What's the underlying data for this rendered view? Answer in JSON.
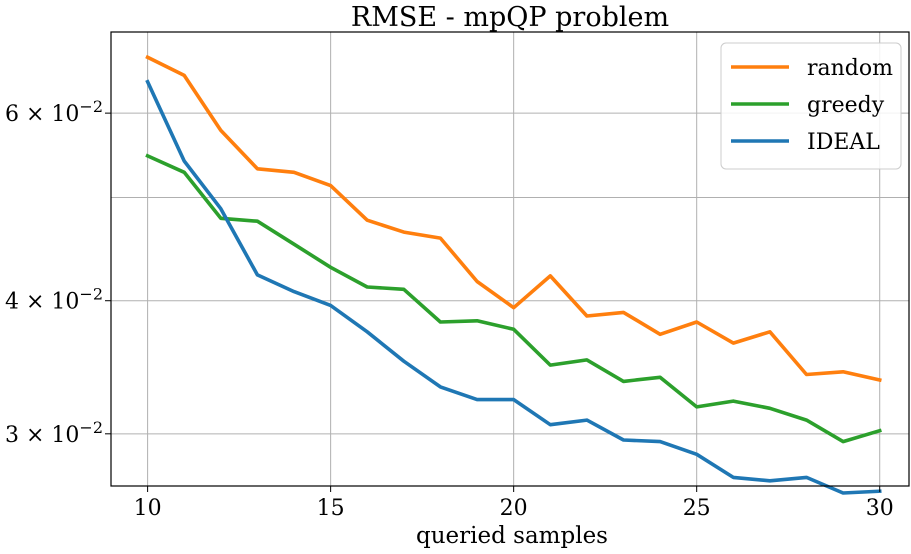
{
  "chart_data": {
    "type": "line",
    "title": "RMSE - mpQP problem",
    "xlabel": "queried samples",
    "ylabel": "",
    "yscale": "log",
    "xlim": [
      9,
      30.8
    ],
    "ylim": [
      0.0268,
      0.0715
    ],
    "grid": true,
    "legend_position": "top-right",
    "x_ticks": [
      10,
      15,
      20,
      25,
      30
    ],
    "y_ticks": [
      {
        "value": 0.03,
        "mantissa": "3",
        "exponent": "-2"
      },
      {
        "value": 0.04,
        "mantissa": "4",
        "exponent": "-2"
      },
      {
        "value": 0.05,
        "mantissa": "",
        "exponent": ""
      },
      {
        "value": 0.06,
        "mantissa": "6",
        "exponent": "-2"
      }
    ],
    "x": [
      10,
      11,
      12,
      13,
      14,
      15,
      16,
      17,
      18,
      19,
      20,
      21,
      22,
      23,
      24,
      25,
      26,
      27,
      28,
      29,
      30
    ],
    "series": [
      {
        "name": "random",
        "color": "#ff7f0e",
        "values": [
          0.0677,
          0.0651,
          0.0578,
          0.0532,
          0.0528,
          0.0513,
          0.0476,
          0.0464,
          0.0458,
          0.0417,
          0.0394,
          0.0422,
          0.0387,
          0.039,
          0.0372,
          0.0382,
          0.0365,
          0.0374,
          0.0341,
          0.0343,
          0.0337
        ]
      },
      {
        "name": "greedy",
        "color": "#2ca02c",
        "values": [
          0.0547,
          0.0528,
          0.0478,
          0.0475,
          0.0452,
          0.043,
          0.0412,
          0.041,
          0.0382,
          0.0383,
          0.0376,
          0.0348,
          0.0352,
          0.0336,
          0.0339,
          0.0318,
          0.0322,
          0.0317,
          0.0309,
          0.0295,
          0.0302
        ]
      },
      {
        "name": "IDEAL",
        "color": "#1f77b4",
        "values": [
          0.0642,
          0.0541,
          0.0488,
          0.0423,
          0.0408,
          0.0396,
          0.0374,
          0.0351,
          0.0332,
          0.0323,
          0.0323,
          0.0306,
          0.0309,
          0.0296,
          0.0295,
          0.0287,
          0.0273,
          0.0271,
          0.0273,
          0.0264,
          0.0265
        ]
      }
    ]
  }
}
